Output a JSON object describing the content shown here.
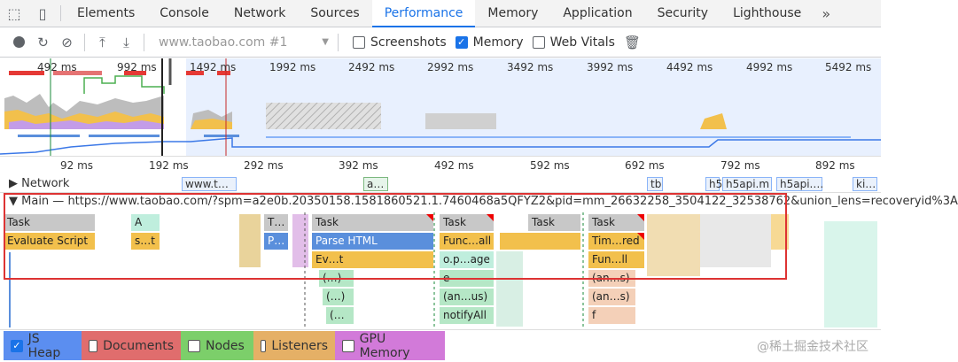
{
  "tabs": [
    {
      "label": "Elements"
    },
    {
      "label": "Console"
    },
    {
      "label": "Network"
    },
    {
      "label": "Sources"
    },
    {
      "label": "Performance",
      "active": true
    },
    {
      "label": "Memory"
    },
    {
      "label": "Application"
    },
    {
      "label": "Security"
    },
    {
      "label": "Lighthouse"
    }
  ],
  "tabs_more_icon": "double-chevron-right-icon",
  "toolbar": {
    "profile_select": "www.taobao.com #1",
    "screenshots_label": "Screenshots",
    "screenshots_checked": false,
    "memory_label": "Memory",
    "memory_checked": true,
    "webvitals_label": "Web Vitals",
    "webvitals_checked": false
  },
  "overview_ticks": [
    "492 ms",
    "992 ms",
    "1492 ms",
    "1992 ms",
    "2492 ms",
    "2992 ms",
    "3492 ms",
    "3992 ms",
    "4492 ms",
    "4992 ms",
    "5492 ms"
  ],
  "ruler_ticks": [
    "92 ms",
    "192 ms",
    "292 ms",
    "392 ms",
    "492 ms",
    "592 ms",
    "692 ms",
    "792 ms",
    "892 ms"
  ],
  "network": {
    "label": "Network",
    "requests": [
      "www.t…",
      "a…",
      "tb",
      "h5",
      "h5api.m",
      "h5api.…",
      "ki…"
    ]
  },
  "main_header": "Main — https://www.taobao.com/?spm=a2e0b.20350158.1581860521.1.7460468a5QFYZ2&pid=mm_26632258_3504122_32538762&union_lens=recoveryid%3A",
  "flame": {
    "row0": [
      "Task",
      "A",
      "T…",
      "Task",
      "Task",
      "Task",
      "Task"
    ],
    "row1": [
      "Evaluate Script",
      "s…t",
      "P…",
      "Parse HTML",
      "Func…all",
      "Tim…red"
    ],
    "row2": [
      "Ev…t",
      "o.p…age",
      "Fun…ll"
    ],
    "row3": [
      "(…)",
      "e",
      "(an…s)"
    ],
    "row4": [
      "(…)",
      "(an…us)",
      "(an…s)"
    ],
    "row5": [
      "(…",
      "notifyAll",
      "f"
    ]
  },
  "footer": {
    "items": [
      {
        "label": "JS Heap",
        "checked": true,
        "color": "#5b8ef0"
      },
      {
        "label": "Documents",
        "checked": false,
        "color": "#e06d6d"
      },
      {
        "label": "Nodes",
        "checked": false,
        "color": "#7ccf6a"
      },
      {
        "label": "Listeners",
        "checked": false,
        "color": "#e5b066"
      },
      {
        "label": "GPU Memory",
        "checked": false,
        "color": "#d27ad9"
      }
    ],
    "watermark": "@稀土掘金技术社区"
  }
}
